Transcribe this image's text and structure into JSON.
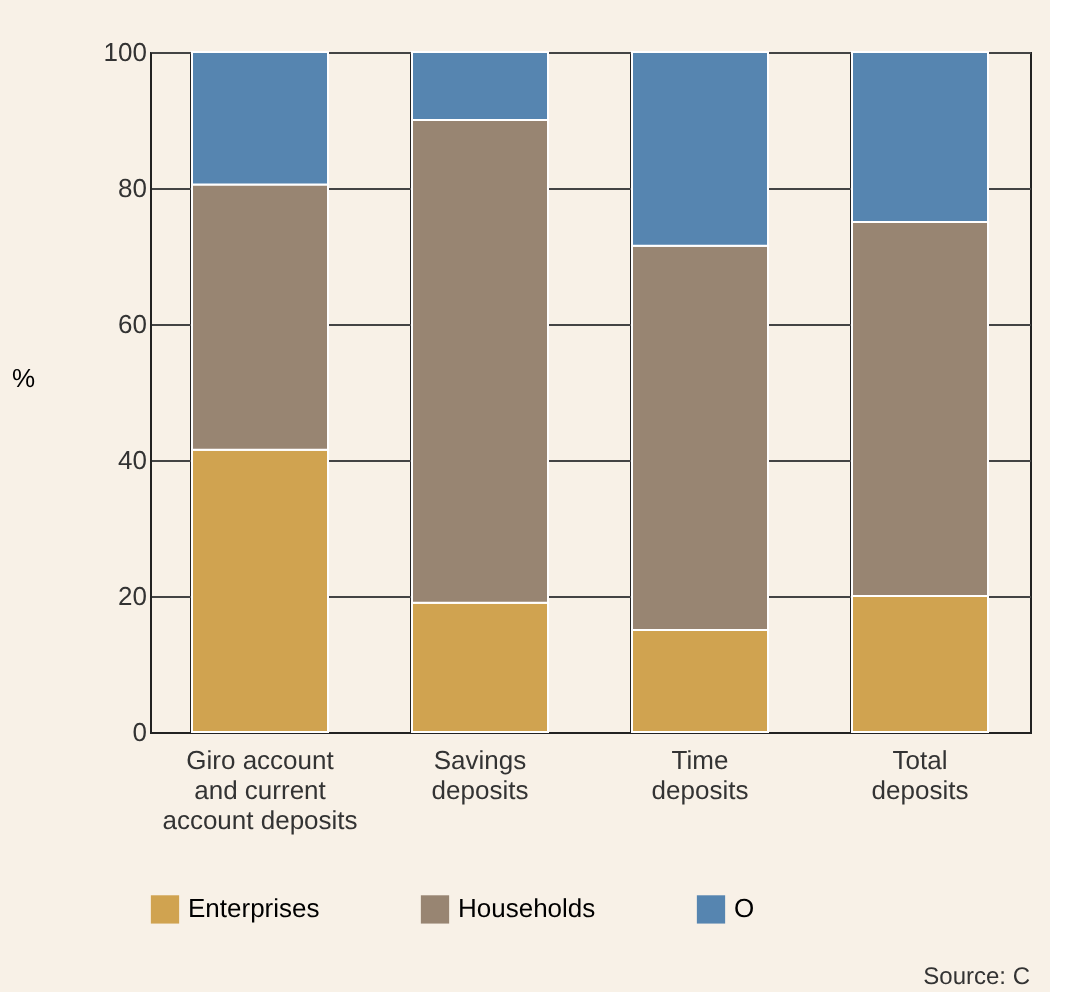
{
  "chart_data": {
    "type": "bar",
    "stacked": true,
    "ylabel": "%",
    "categories": [
      "Giro account\nand current\naccount deposits",
      "Savings\ndeposits",
      "Time\ndeposits",
      "Total\ndeposits"
    ],
    "series": [
      {
        "name": "Enterprises",
        "color": "#d0a350",
        "values": [
          41.5,
          19,
          15,
          20
        ]
      },
      {
        "name": "Households",
        "color": "#988572",
        "values": [
          39,
          71,
          56.5,
          55
        ]
      },
      {
        "name": "O",
        "color": "#5685b0",
        "values": [
          19.5,
          10,
          28.5,
          25
        ]
      }
    ],
    "ylim": [
      0,
      100
    ],
    "yticks": [
      0,
      20,
      40,
      60,
      80,
      100
    ],
    "grid": true,
    "legend": "bottom",
    "annotations": [
      "Source: C"
    ]
  }
}
